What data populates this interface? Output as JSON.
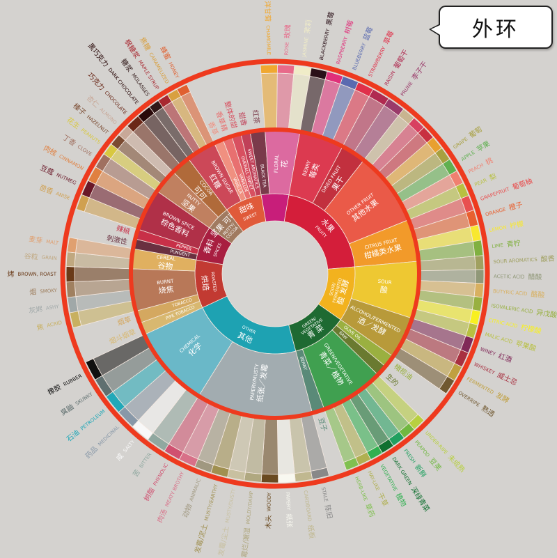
{
  "callout": {
    "label": "外环"
  },
  "ring_color": "#ee3a1e",
  "wheel": [
    {
      "en": "FLORAL",
      "zh": "花",
      "color": "#c81e7a",
      "mid": [
        {
          "en": "BLACK TEA",
          "zh": "红茶",
          "color": "#7a3a4a",
          "leaves": []
        },
        {
          "en": "FLORAL",
          "zh": "花",
          "color": "#dc6aa0",
          "leaves": [
            {
              "en": "CHAMOMILE",
              "zh": "洋甘菊",
              "color": "#f0a830"
            },
            {
              "en": "ROSE",
              "zh": "玫瑰",
              "color": "#e86a8a"
            },
            {
              "en": "JASMINE",
              "zh": "茉莉",
              "color": "#f0ecc8"
            }
          ]
        }
      ]
    },
    {
      "en": "FRUITY",
      "zh": "水果",
      "color": "#d41e3a",
      "mid": [
        {
          "en": "BERRY",
          "zh": "莓类",
          "color": "#dc3a50",
          "leaves": [
            {
              "en": "BLACKBERRY",
              "zh": "黑莓",
              "color": "#2a1018"
            },
            {
              "en": "RASPBERRY",
              "zh": "树莓",
              "color": "#e0307a"
            },
            {
              "en": "BLUEBERRY",
              "zh": "蓝莓",
              "color": "#5a6ab0"
            },
            {
              "en": "STRAWBERRY",
              "zh": "草莓",
              "color": "#e0304a"
            }
          ]
        },
        {
          "en": "DRIED FRUIT",
          "zh": "果干",
          "color": "#c2303e",
          "leaves": [
            {
              "en": "RAISIN",
              "zh": "葡萄干",
              "color": "#b02a50"
            },
            {
              "en": "PRUNE",
              "zh": "李子干",
              "color": "#9a3a6a"
            }
          ]
        },
        {
          "en": "OTHER FRUIT",
          "zh": "其他水果",
          "color": "#ea5a48",
          "leaves": [
            {
              "en": "",
              "zh": "",
              "color": "#c8b490"
            },
            {
              "en": "",
              "zh": "",
              "color": "#d84060"
            },
            {
              "en": "",
              "zh": "",
              "color": "#c83040"
            },
            {
              "en": "",
              "zh": "",
              "color": "#e8a030"
            },
            {
              "en": "GRAPE",
              "zh": "葡萄",
              "color": "#a8a040"
            },
            {
              "en": "APPLE",
              "zh": "苹果",
              "color": "#60b050"
            },
            {
              "en": "PEACH",
              "zh": "桃",
              "color": "#f08070"
            },
            {
              "en": "PEAR",
              "zh": "梨",
              "color": "#b8c040"
            }
          ]
        },
        {
          "en": "CITRUS FRUIT",
          "zh": "柑橘类水果",
          "color": "#f29a2a",
          "leaves": [
            {
              "en": "GRAPEFRUIT",
              "zh": "葡萄柚",
              "color": "#e85050"
            },
            {
              "en": "ORANGE",
              "zh": "橙子",
              "color": "#e86030"
            },
            {
              "en": "LEMON",
              "zh": "柠檬",
              "color": "#f8e830"
            },
            {
              "en": "LIME",
              "zh": "青柠",
              "color": "#80b040"
            }
          ]
        }
      ]
    },
    {
      "en": "SOUR/ FERMENTED",
      "zh": "酸 发酵",
      "color": "#f2b21e",
      "mid": [
        {
          "en": "SOUR",
          "zh": "酸",
          "color": "#eec832",
          "leaves": [
            {
              "en": "SOUR AROMATICS",
              "zh": "酸香",
              "color": "#a0a060"
            },
            {
              "en": "ACETIC ACID",
              "zh": "醋酸",
              "color": "#909878"
            },
            {
              "en": "BUTYRIC ACID",
              "zh": "酪酸",
              "color": "#d8b060"
            },
            {
              "en": "ISOVALERIC ACID",
              "zh": "异戊酸",
              "color": "#98b040"
            },
            {
              "en": "CITRIC ACID",
              "zh": "柠檬酸",
              "color": "#f8f020"
            },
            {
              "en": "MALIC ACID",
              "zh": "苹果酸",
              "color": "#b8c040"
            }
          ]
        },
        {
          "en": "ALCOHOL/FERMENTED",
          "zh": "酒／发酵",
          "color": "#b89a3a",
          "leaves": [
            {
              "en": "WINEY",
              "zh": "红酒",
              "color": "#802858"
            },
            {
              "en": "WHISKEY",
              "zh": "威士忌",
              "color": "#a83040"
            },
            {
              "en": "FERMENTED",
              "zh": "发酵",
              "color": "#c0a040"
            },
            {
              "en": "OVERRIPE",
              "zh": "熟透",
              "color": "#705830"
            }
          ]
        }
      ]
    },
    {
      "en": "GREEN/ VEGETATIVE",
      "zh": "青 菜",
      "color": "#1e6a32",
      "mid": [
        {
          "en": "OLIVE OIL",
          "zh": "橄榄油",
          "color": "#9ab040",
          "leaves": []
        },
        {
          "en": "RAW",
          "zh": "生的",
          "color": "#6a7a30",
          "leaves": []
        },
        {
          "en": "GREEN/VEGETATIVE",
          "zh": "青菜／植物",
          "color": "#40a050",
          "leaves": [
            {
              "en": "UNDER-RIPE",
              "zh": "未成熟",
              "color": "#b8d040"
            },
            {
              "en": "PEAPOD",
              "zh": "豆荚",
              "color": "#70b840"
            },
            {
              "en": "FRESH",
              "zh": "新鲜",
              "color": "#20a060"
            },
            {
              "en": "DARK GREEN",
              "zh": "深绿青菜",
              "color": "#107030"
            },
            {
              "en": "VEGETATIVE",
              "zh": "植物",
              "color": "#30b050"
            },
            {
              "en": "HAY-LIKE",
              "zh": "干草",
              "color": "#b0b050"
            },
            {
              "en": "HERB-LIKE",
              "zh": "草药",
              "color": "#80c050"
            }
          ]
        },
        {
          "en": "BEANY",
          "zh": "豆子",
          "color": "#5a8a78",
          "leaves": []
        }
      ]
    },
    {
      "en": "OTHER",
      "zh": "其他",
      "color": "#1ea2b2",
      "mid": [
        {
          "en": "PAPERY/MUSTY",
          "zh": "纸张／发霉",
          "color": "#a2acb0",
          "leaves": [
            {
              "en": "STALE",
              "zh": "陈旧",
              "color": "#888888"
            },
            {
              "en": "CARDBOARD",
              "zh": "纸板",
              "color": "#c0b890"
            },
            {
              "en": "PAPERY",
              "zh": "纸张",
              "color": "#f8f8f0"
            },
            {
              "en": "WOODY",
              "zh": "木头",
              "color": "#6a4a20"
            },
            {
              "en": "MOLDY/DAMP",
              "zh": "霉烂/潮湿",
              "color": "#b0a880"
            },
            {
              "en": "MUSTY/DUSTY",
              "zh": "发霉/尘土",
              "color": "#c8c0a0"
            },
            {
              "en": "MUSTY/EARTHY",
              "zh": "发霉/泥土",
              "color": "#a09050"
            },
            {
              "en": "ANIMALIC",
              "zh": "动物",
              "color": "#a09880"
            },
            {
              "en": "MEATY BROTHY",
              "zh": "肉汤",
              "color": "#d87088"
            },
            {
              "en": "PHENOLIC",
              "zh": "树脂",
              "color": "#d05070"
            }
          ]
        },
        {
          "en": "CHEMICAL",
          "zh": "化学",
          "color": "#6ab8c8",
          "leaves": [
            {
              "en": "BITTER",
              "zh": "苦",
              "color": "#90a8a0"
            },
            {
              "en": "SALTY",
              "zh": "咸",
              "color": "#f8f8f8"
            },
            {
              "en": "MEDICINAL",
              "zh": "药品",
              "color": "#8898a8"
            },
            {
              "en": "PETROLEUM",
              "zh": "石油",
              "color": "#20a8b8"
            },
            {
              "en": "SKUNKY",
              "zh": "臭鼬",
              "color": "#607070"
            },
            {
              "en": "RUBBER",
              "zh": "橡胶",
              "color": "#101010"
            }
          ]
        }
      ]
    },
    {
      "en": "ROASTED",
      "zh": "烘焙",
      "color": "#c23a32",
      "mid": [
        {
          "en": "PIPE TOBACCO",
          "zh": "烟斗烟草",
          "color": "#d8b870",
          "leaves": []
        },
        {
          "en": "TOBACCO",
          "zh": "烟草",
          "color": "#d4a860",
          "leaves": []
        },
        {
          "en": "BURNT",
          "zh": "烧焦",
          "color": "#b87858",
          "leaves": [
            {
              "en": "ACRID",
              "zh": "焦",
              "color": "#c8b060"
            },
            {
              "en": "ASHY",
              "zh": "灰烬",
              "color": "#a0a8a8"
            },
            {
              "en": "SMOKY",
              "zh": "烟",
              "color": "#a08060"
            },
            {
              "en": "BROWN, ROAST",
              "zh": "烤",
              "color": "#6a3a18"
            }
          ]
        },
        {
          "en": "CEREAL",
          "zh": "谷物",
          "color": "#e0b060",
          "leaves": [
            {
              "en": "GRAIN",
              "zh": "谷粒",
              "color": "#c0a880"
            },
            {
              "en": "MALT",
              "zh": "麦芽",
              "color": "#e0a070"
            }
          ]
        }
      ]
    },
    {
      "en": "SPICES",
      "zh": "香料",
      "color": "#a81e40",
      "mid": [
        {
          "en": "PUNGENT",
          "zh": "刺激性",
          "color": "#6a3040",
          "leaves": []
        },
        {
          "en": "PEPPER",
          "zh": "辣椒",
          "color": "#c83048",
          "leaves": []
        },
        {
          "en": "BROWN SPICE",
          "zh": "棕色香料",
          "color": "#b03048",
          "leaves": [
            {
              "en": "ANISE",
              "zh": "茴香",
              "color": "#d0a050"
            },
            {
              "en": "NUTMEG",
              "zh": "豆蔻",
              "color": "#6a1828"
            },
            {
              "en": "CINNAMON",
              "zh": "肉桂",
              "color": "#e08040"
            },
            {
              "en": "CLOVE",
              "zh": "丁香",
              "color": "#a07060"
            }
          ]
        }
      ]
    },
    {
      "en": "NUTTY/ COCOA",
      "zh": "坚果 可可",
      "color": "#a07a60",
      "mid": [
        {
          "en": "NUTTY",
          "zh": "坚果",
          "color": "#c08060",
          "leaves": [
            {
              "en": "PEANUTS",
              "zh": "花生",
              "color": "#d8c840"
            },
            {
              "en": "HAZELNUT",
              "zh": "榛子",
              "color": "#7a4a30"
            },
            {
              "en": "ALMOND",
              "zh": "杏仁",
              "color": "#c8a898"
            }
          ]
        },
        {
          "en": "COCOA",
          "zh": "可可",
          "color": "#b06a3a",
          "leaves": [
            {
              "en": "CHOCOLATE",
              "zh": "巧克力",
              "color": "#6a2818"
            },
            {
              "en": "DARK CHOCOLATE",
              "zh": "黑巧克力",
              "color": "#2a0a0a"
            }
          ]
        }
      ]
    },
    {
      "en": "SWEET",
      "zh": "甜味",
      "color": "#e05a3a",
      "mid": [
        {
          "en": "BROWN SUGAR",
          "zh": "红糖",
          "color": "#cc4858",
          "leaves": [
            {
              "en": "MOLASSES",
              "zh": "糖浆",
              "color": "#301818"
            },
            {
              "en": "MAPLE SYRUP",
              "zh": "枫糖浆",
              "color": "#a82830"
            },
            {
              "en": "CARAMELIZED",
              "zh": "焦糖",
              "color": "#d8a040"
            },
            {
              "en": "HONEY",
              "zh": "蜂蜜",
              "color": "#e06030"
            }
          ]
        },
        {
          "en": "VANILLA",
          "zh": "香草",
          "color": "#f09080",
          "leaves": []
        },
        {
          "en": "VANILLIN",
          "zh": "香草精",
          "color": "#e87070",
          "leaves": []
        },
        {
          "en": "OVERALL SWEET",
          "zh": "整体的甜",
          "color": "#d85060",
          "leaves": []
        },
        {
          "en": "SWEET AROMATICS",
          "zh": "甜香",
          "color": "#c04058",
          "leaves": []
        }
      ]
    }
  ]
}
